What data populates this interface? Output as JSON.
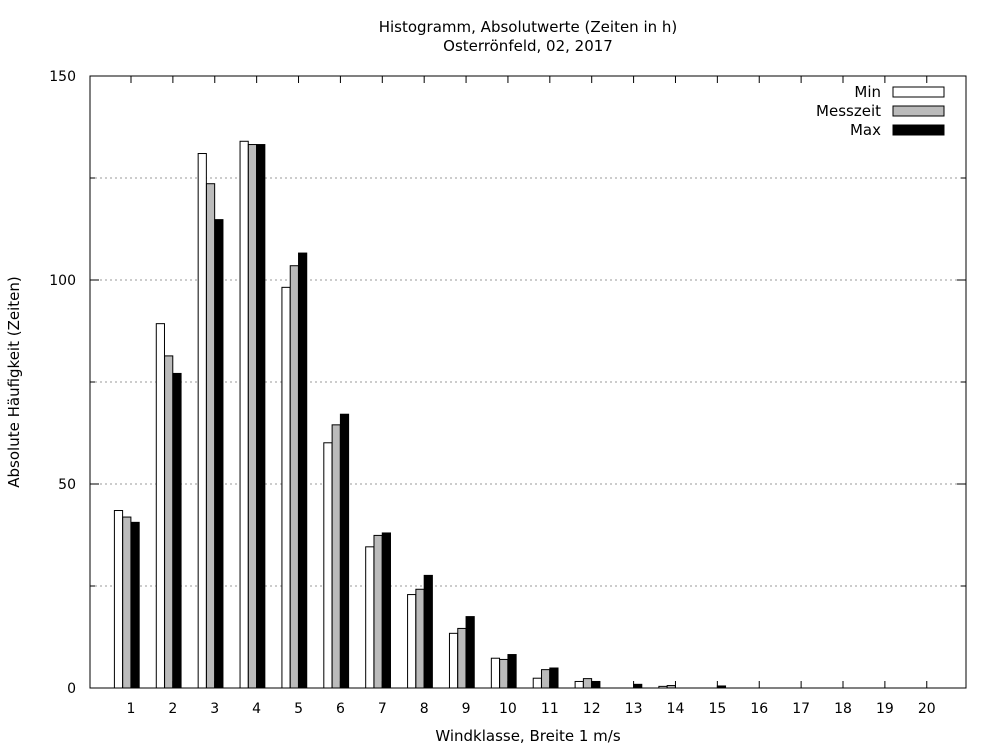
{
  "chart_data": {
    "type": "bar",
    "title": "Histogramm, Absolutwerte (Zeiten in h)",
    "subtitle": "Osterrönfeld, 02, 2017",
    "xlabel": "Windklasse, Breite 1 m/s",
    "ylabel": "Absolute Häufigkeit (Zeiten)",
    "ylim": [
      0,
      150
    ],
    "y_ticks": [
      "0",
      "50",
      "100",
      "150"
    ],
    "grid": true,
    "legend_position": "top-right",
    "categories": [
      "1",
      "2",
      "3",
      "4",
      "5",
      "6",
      "7",
      "8",
      "9",
      "10",
      "11",
      "12",
      "13",
      "14",
      "15",
      "16",
      "17",
      "18",
      "19",
      "20"
    ],
    "series": [
      {
        "name": "Min",
        "color": "#ffffff",
        "values": [
          43.5,
          89.3,
          131,
          134,
          98.2,
          60.1,
          34.6,
          22.9,
          13.4,
          7.3,
          2.4,
          1.6,
          0,
          0.4,
          0,
          0,
          0,
          0,
          0,
          0
        ]
      },
      {
        "name": "Messzeit",
        "color": "#bbbbbb",
        "values": [
          41.9,
          81.4,
          123.6,
          133.2,
          103.5,
          64.5,
          37.4,
          24.2,
          14.6,
          7.0,
          4.5,
          2.3,
          0,
          0.6,
          0,
          0,
          0,
          0,
          0,
          0
        ]
      },
      {
        "name": "Max",
        "color": "#000000",
        "values": [
          40.6,
          77.1,
          114.8,
          133.2,
          106.6,
          67.1,
          38.0,
          27.6,
          17.5,
          8.2,
          4.9,
          1.6,
          0.9,
          0,
          0.5,
          0,
          0,
          0,
          0,
          0
        ]
      }
    ]
  }
}
